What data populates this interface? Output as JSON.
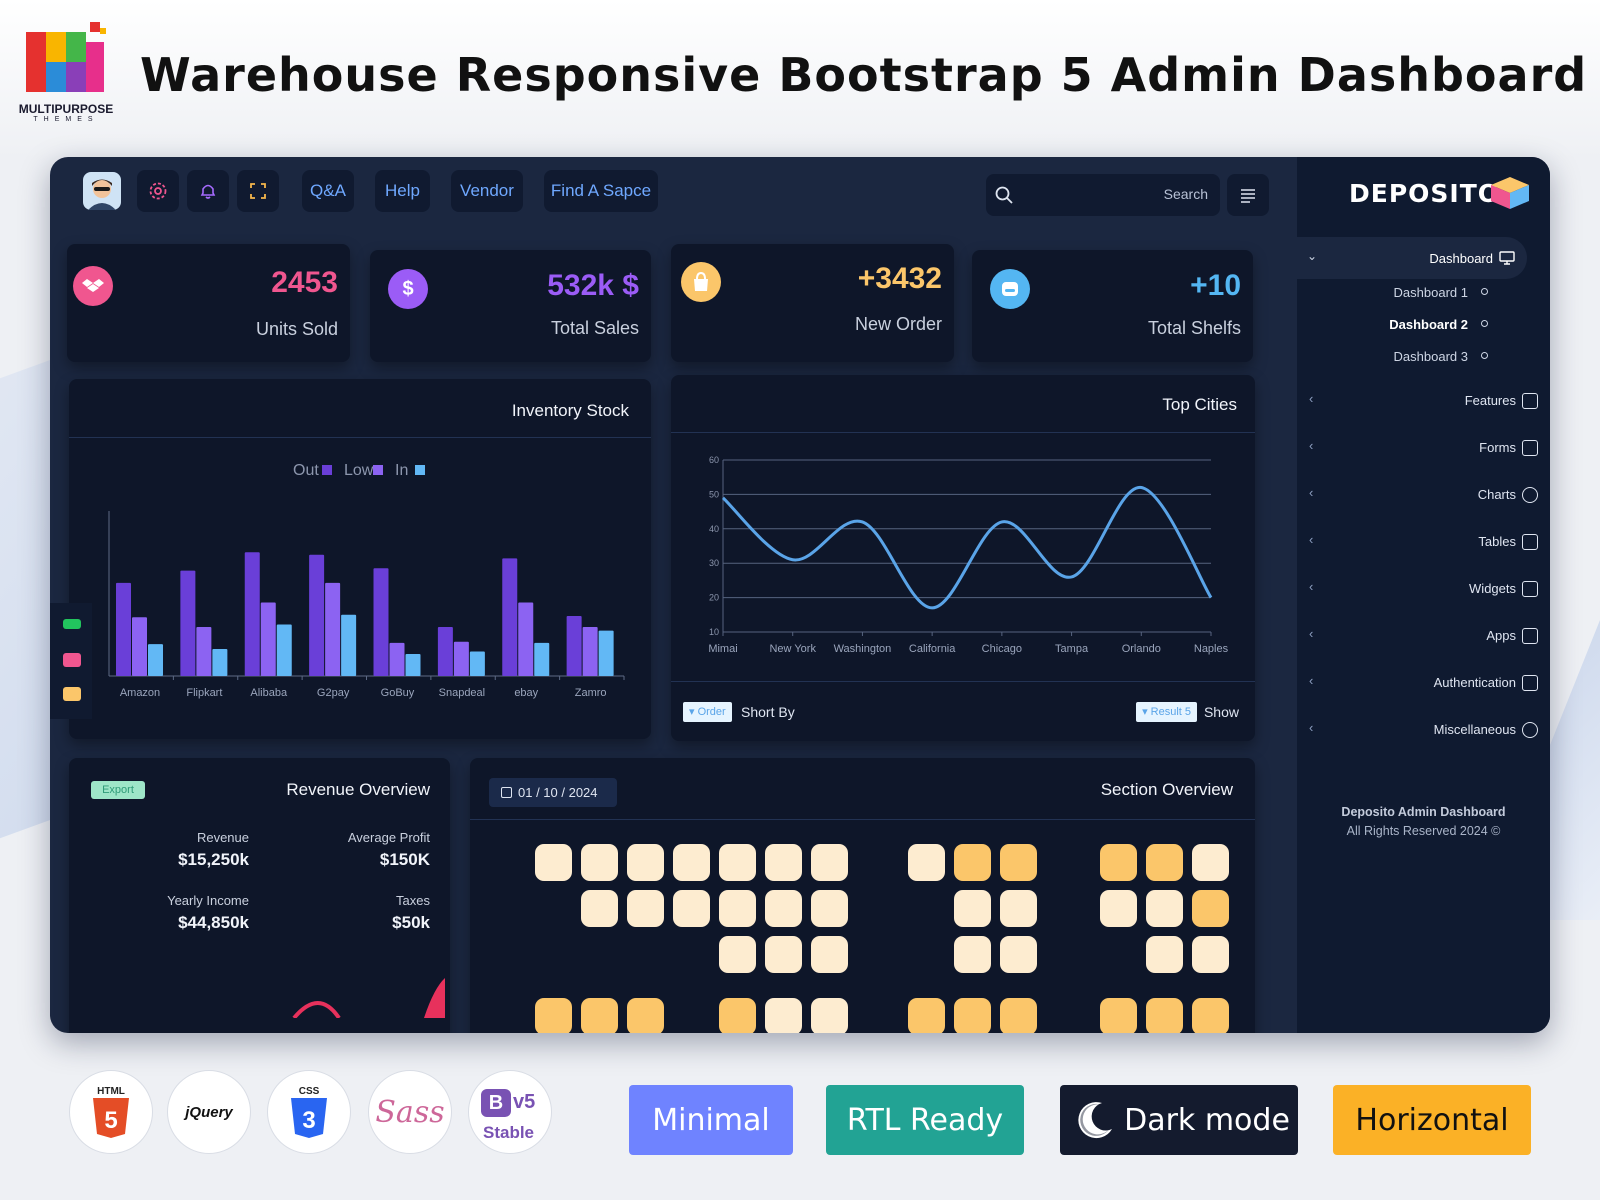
{
  "banner": {
    "brand_name": "MULTIPURPOSE",
    "brand_sub": "THEMES",
    "title": "Warehouse Responsive Bootstrap 5 Admin Dashboard"
  },
  "topbar": {
    "links": [
      "Q&A",
      "Help",
      "Vendor",
      "Find A Sapce"
    ],
    "search_placeholder": "Search"
  },
  "stats": [
    {
      "value": "2453",
      "label": "Units Sold",
      "color": "#f0568f",
      "icon": "dropbox-icon"
    },
    {
      "value": "532k $",
      "label": "Total Sales",
      "color": "#9b5cf6",
      "icon": "dollar-icon"
    },
    {
      "value": "+3432",
      "label": "New Order",
      "color": "#fbc66a",
      "icon": "shopping-bag-icon"
    },
    {
      "value": "+10",
      "label": "Total Shelfs",
      "color": "#54b6f2",
      "icon": "inbox-icon"
    }
  ],
  "inventory": {
    "title": "Inventory Stock",
    "chart_data": {
      "type": "bar",
      "categories": [
        "Amazon",
        "Flipkart",
        "Alibaba",
        "G2pay",
        "GoBuy",
        "Snapdeal",
        "ebay",
        "Zamro"
      ],
      "series": [
        {
          "name": "Out",
          "color": "#6a3fd8",
          "values": [
            76,
            86,
            101,
            99,
            88,
            40,
            96,
            49
          ]
        },
        {
          "name": "Low",
          "color": "#8c63f2",
          "values": [
            48,
            40,
            60,
            76,
            27,
            28,
            60,
            40
          ]
        },
        {
          "name": "In",
          "color": "#62b8f5",
          "values": [
            26,
            22,
            42,
            50,
            18,
            20,
            27,
            37
          ]
        }
      ],
      "ylim": [
        0,
        120
      ],
      "legend": "top-center"
    }
  },
  "cities": {
    "title": "Top Cities",
    "order_badge": "Order",
    "sort_label": "Short By",
    "result_badge": "Result 5",
    "show_label": "Show",
    "chart_data": {
      "type": "line",
      "x": [
        "Mimai",
        "New York",
        "Washington",
        "California",
        "Chicago",
        "Tampa",
        "Orlando",
        "Naples"
      ],
      "values": [
        49,
        31,
        42,
        17,
        42,
        26,
        52,
        20
      ],
      "yticks": [
        10,
        20,
        30,
        40,
        50,
        60
      ],
      "ylim": [
        10,
        60
      ],
      "grid": true,
      "color": "#5aa4e8"
    }
  },
  "revenue": {
    "title": "Revenue Overview",
    "export_label": "Export",
    "items": [
      {
        "label": "Revenue",
        "value": "$15,250k"
      },
      {
        "label": "Average Profit",
        "value": "$150K"
      },
      {
        "label": "Yearly Income",
        "value": "$44,850k"
      },
      {
        "label": "Taxes",
        "value": "$50k"
      }
    ]
  },
  "section": {
    "title": "Section Overview",
    "date": "01 / 10 / 2024"
  },
  "sidebar": {
    "brand": "DEPOSITO",
    "active": "Dashboard",
    "subitems": [
      "Dashboard 1",
      "Dashboard 2",
      "Dashboard 3"
    ],
    "items": [
      "Features",
      "Forms",
      "Charts",
      "Tables",
      "Widgets",
      "Apps",
      "Authentication",
      "Miscellaneous"
    ],
    "footer_title": "Deposito Admin Dashboard",
    "footer_copy": "All Rights Reserved 2024 ©"
  },
  "badges": {
    "tech": [
      "HTML",
      "jQuery",
      "CSS",
      "Sass",
      "v5",
      "Stable"
    ],
    "features": [
      {
        "label": "Minimal",
        "color": "#6f83ff"
      },
      {
        "label": "RTL Ready",
        "color": "#22a394"
      },
      {
        "label": "Dark mode",
        "color": "#141b2e"
      },
      {
        "label": "Horizontal",
        "color": "#fbb126"
      }
    ]
  }
}
